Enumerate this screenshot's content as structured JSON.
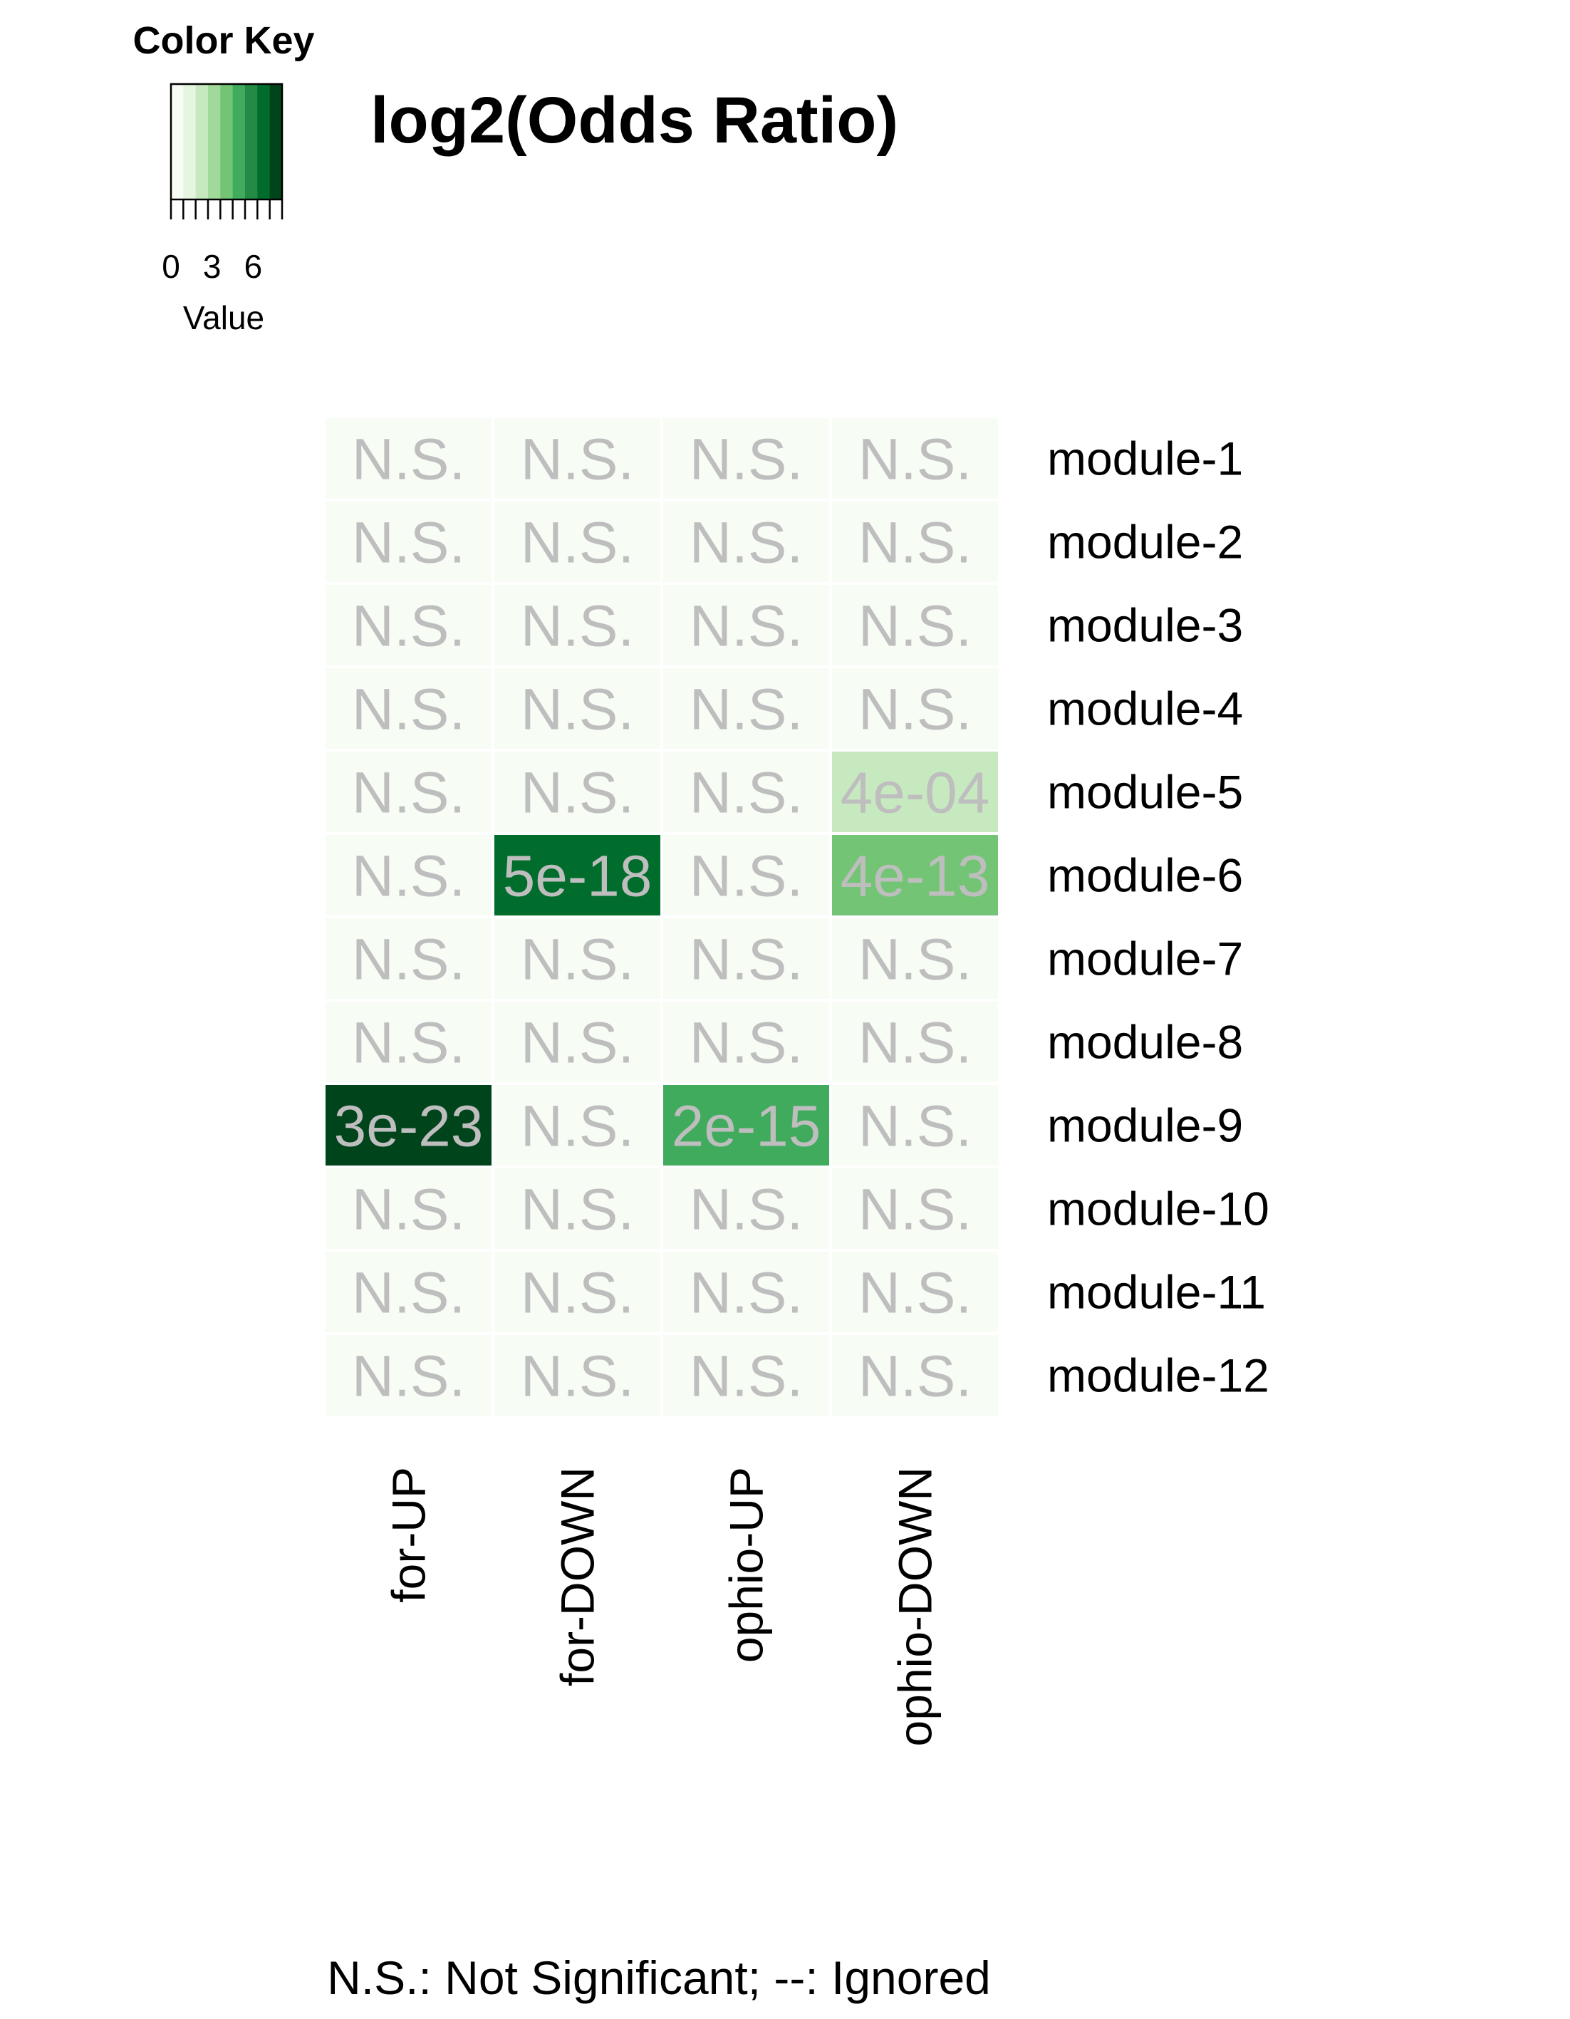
{
  "chart_data": {
    "type": "heatmap",
    "title": "log2(Odds Ratio)",
    "columns": [
      "for-UP",
      "for-DOWN",
      "ophio-UP",
      "ophio-DOWN"
    ],
    "rows": [
      "module-1",
      "module-2",
      "module-3",
      "module-4",
      "module-5",
      "module-6",
      "module-7",
      "module-8",
      "module-9",
      "module-10",
      "module-11",
      "module-12"
    ],
    "values": [
      [
        0,
        0,
        0,
        0
      ],
      [
        0,
        0,
        0,
        0
      ],
      [
        0,
        0,
        0,
        0
      ],
      [
        0,
        0,
        0,
        0
      ],
      [
        0,
        0,
        0,
        2
      ],
      [
        0,
        5.5,
        0,
        3
      ],
      [
        0,
        0,
        0,
        0
      ],
      [
        0,
        0,
        0,
        0
      ],
      [
        6.5,
        0,
        3.8,
        0
      ],
      [
        0,
        0,
        0,
        0
      ],
      [
        0,
        0,
        0,
        0
      ],
      [
        0,
        0,
        0,
        0
      ]
    ],
    "cell_labels": [
      [
        "N.S.",
        "N.S.",
        "N.S.",
        "N.S."
      ],
      [
        "N.S.",
        "N.S.",
        "N.S.",
        "N.S."
      ],
      [
        "N.S.",
        "N.S.",
        "N.S.",
        "N.S."
      ],
      [
        "N.S.",
        "N.S.",
        "N.S.",
        "N.S."
      ],
      [
        "N.S.",
        "N.S.",
        "N.S.",
        "4e-04"
      ],
      [
        "N.S.",
        "5e-18",
        "N.S.",
        "4e-13"
      ],
      [
        "N.S.",
        "N.S.",
        "N.S.",
        "N.S."
      ],
      [
        "N.S.",
        "N.S.",
        "N.S.",
        "N.S."
      ],
      [
        "3e-23",
        "N.S.",
        "2e-15",
        "N.S."
      ],
      [
        "N.S.",
        "N.S.",
        "N.S.",
        "N.S."
      ],
      [
        "N.S.",
        "N.S.",
        "N.S.",
        "N.S."
      ],
      [
        "N.S.",
        "N.S.",
        "N.S.",
        "N.S."
      ]
    ],
    "color_key": {
      "title": "Color Key",
      "label": "Value",
      "ticks": [
        "0",
        "3",
        "6"
      ],
      "range": [
        0,
        6.5
      ],
      "colors": [
        "#f7fcf5",
        "#e5f5e0",
        "#c7e9c0",
        "#a1d99b",
        "#74c476",
        "#41ab5d",
        "#238b45",
        "#006d2c",
        "#00441b"
      ]
    },
    "footnote": "N.S.: Not Significant; --: Ignored",
    "cell_text_color": "#bebebe",
    "legend_position": "top-left",
    "grid": false
  }
}
